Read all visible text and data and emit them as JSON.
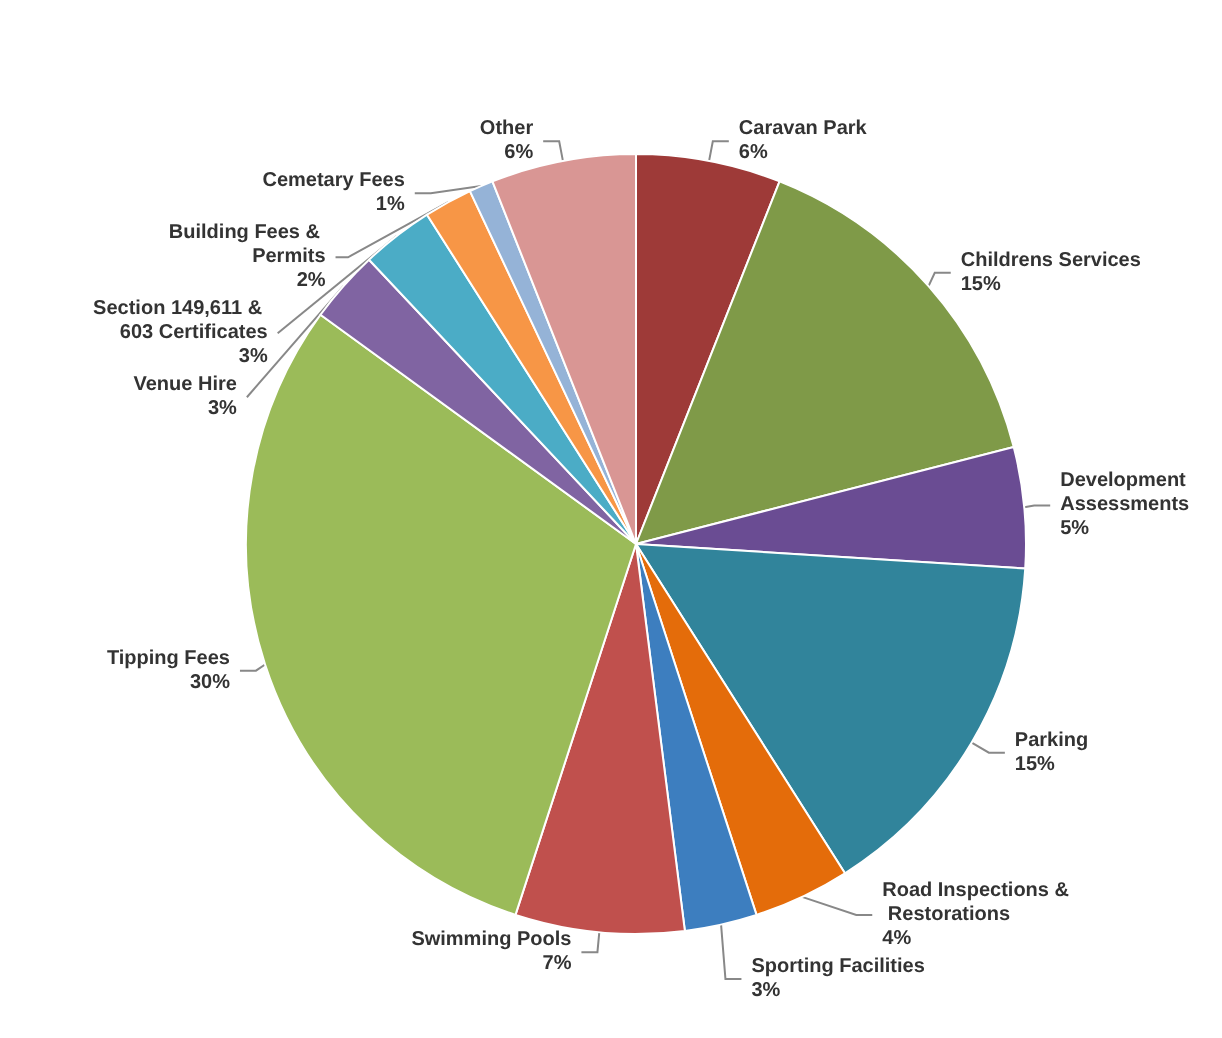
{
  "chart_data": {
    "type": "pie",
    "categories": [
      "Caravan Park",
      "Childrens Services",
      "Development Assessments",
      "Parking",
      "Road Inspections & Restorations",
      "Sporting Facilities",
      "Swimming Pools",
      "Tipping Fees",
      "Venue Hire",
      "Section 149,611 & 603 Certificates",
      "Building Fees & Permits",
      "Cemetary Fees",
      "Other"
    ],
    "values": [
      6,
      15,
      5,
      15,
      4,
      3,
      7,
      30,
      3,
      3,
      2,
      1,
      6
    ],
    "value_labels": [
      "6%",
      "15%",
      "5%",
      "15%",
      "4%",
      "3%",
      "7%",
      "30%",
      "3%",
      "3%",
      "2%",
      "1%",
      "6%"
    ],
    "colors": [
      "#9e3a38",
      "#7f9a48",
      "#6a4c93",
      "#31849b",
      "#e46c0a",
      "#3d7ebf",
      "#c0504d",
      "#9bbb59",
      "#8064a2",
      "#4bacc6",
      "#f79646",
      "#95b3d7",
      "#d99694"
    ],
    "legend": false
  }
}
